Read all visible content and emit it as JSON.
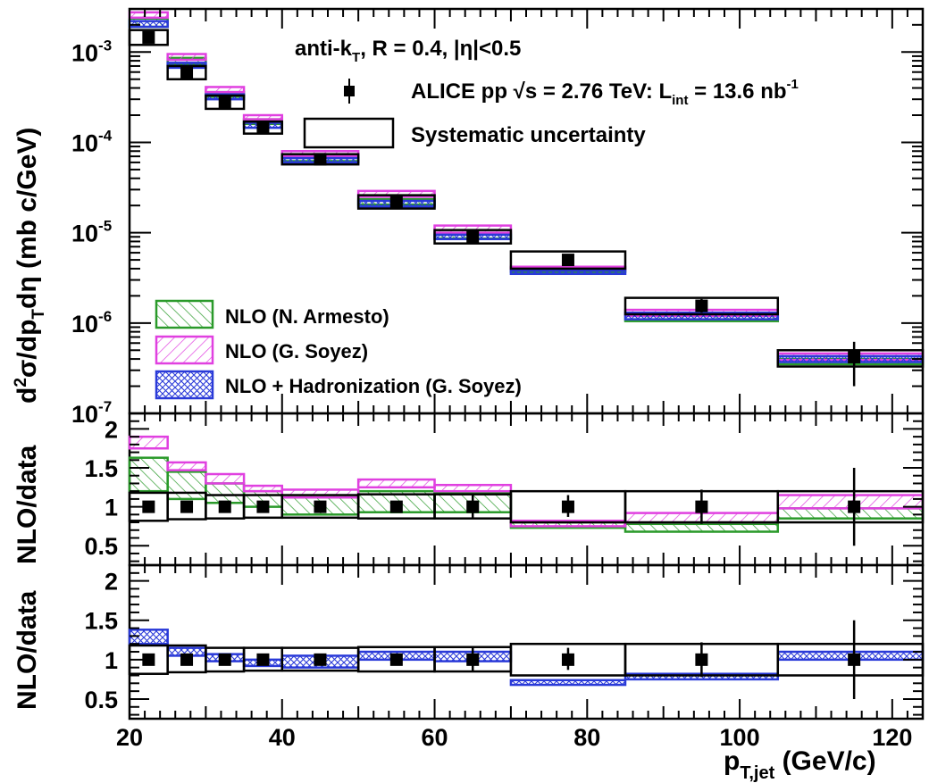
{
  "colors": {
    "data": "#000000",
    "nlo_armesto": "#2a9a2a",
    "nlo_soyez": "#e040e0",
    "nlo_hadronization": "#2a3ad8"
  },
  "chart_data": [
    {
      "type": "bar",
      "panel": "top",
      "ylabel_main": "d",
      "ylabel_parts": [
        "d",
        "2",
        "σ/dp",
        "T",
        "dη (mb c/GeV)"
      ],
      "xlim": [
        20,
        124
      ],
      "ylim": [
        1e-07,
        0.003
      ],
      "log_y": true,
      "ytick_labels": [
        {
          "mantissa": "10",
          "exponent": "-7",
          "value": 1e-07
        },
        {
          "mantissa": "10",
          "exponent": "-6",
          "value": 1e-06
        },
        {
          "mantissa": "10",
          "exponent": "-5",
          "value": 1e-05
        },
        {
          "mantissa": "10",
          "exponent": "-4",
          "value": 0.0001
        },
        {
          "mantissa": "10",
          "exponent": "-3",
          "value": 0.001
        }
      ],
      "bins": [
        [
          20,
          25
        ],
        [
          25,
          30
        ],
        [
          30,
          35
        ],
        [
          35,
          40
        ],
        [
          40,
          50
        ],
        [
          50,
          60
        ],
        [
          60,
          70
        ],
        [
          70,
          85
        ],
        [
          85,
          105
        ],
        [
          105,
          125
        ]
      ],
      "bin_centers": [
        22.5,
        27.5,
        32.5,
        37.5,
        45,
        55,
        65,
        77.5,
        95,
        115
      ],
      "data_values": [
        0.00145,
        0.00059,
        0.00028,
        0.000145,
        6.5e-05,
        2.2e-05,
        9e-06,
        5e-06,
        1.55e-06,
        4.2e-07
      ],
      "stat_err_low": [
        null,
        null,
        null,
        null,
        null,
        null,
        7.5e-06,
        4.3e-06,
        1.3e-06,
        2e-07
      ],
      "stat_err_high": [
        null,
        null,
        null,
        null,
        null,
        null,
        1.05e-05,
        5.8e-06,
        1.85e-06,
        6.2e-07
      ],
      "syst_low": [
        0.0012,
        0.0005,
        0.000235,
        0.000125,
        5.7e-05,
        1.85e-05,
        7.6e-06,
        4e-06,
        1.25e-06,
        3.3e-07
      ],
      "syst_high": [
        0.00175,
        0.0007,
        0.00033,
        0.00017,
        7.4e-05,
        2.6e-05,
        1.07e-05,
        6.2e-06,
        1.9e-06,
        5e-07
      ],
      "series": [
        {
          "name": "NLO (N. Armesto)",
          "color_key": "nlo_armesto",
          "low": [
            0.0019,
            0.00073,
            0.00032,
            0.00016,
            6.2e-05,
            2.05e-05,
            8.6e-06,
            3.7e-06,
            1.05e-06,
            3.5e-07
          ],
          "high": [
            0.00235,
            0.00086,
            0.00036,
            0.00018,
            6.8e-05,
            2.35e-05,
            1e-05,
            4.1e-06,
            1.2e-06,
            4e-07
          ]
        },
        {
          "name": "NLO (G. Soyez)",
          "color_key": "nlo_soyez",
          "low": [
            0.0024,
            0.00082,
            0.00036,
            0.00018,
            7e-05,
            2.5e-05,
            1e-05,
            3.9e-06,
            1.2e-06,
            3.9e-07
          ],
          "high": [
            0.00275,
            0.00095,
            0.00041,
            0.0002,
            8e-05,
            2.9e-05,
            1.2e-05,
            4.2e-06,
            1.4e-06,
            4.6e-07
          ]
        },
        {
          "name": "NLO + Hadronization (G. Soyez)",
          "color_key": "nlo_hadronization",
          "low": [
            0.0019,
            0.00067,
            0.0003,
            0.000145,
            6e-05,
            1.95e-05,
            8.5e-06,
            3.5e-06,
            1.1e-06,
            3.7e-07
          ],
          "high": [
            0.0022,
            0.00076,
            0.00034,
            0.000165,
            6.7e-05,
            2.25e-05,
            9.5e-06,
            3.8e-06,
            1.3e-06,
            4.3e-07
          ]
        }
      ],
      "annotations": {
        "algo_prefix": "anti-k",
        "algo_sub": "T",
        "algo_suffix": ", R = 0.4, |η|<0.5",
        "experiment_prefix": "ALICE pp  √s = 2.76 TeV: L",
        "experiment_sub": "int",
        "experiment_mid": " = 13.6 nb",
        "experiment_sup": "-1",
        "syst_label": "Systematic uncertainty"
      },
      "legend": "bottom-left"
    },
    {
      "type": "bar",
      "panel": "middle",
      "ylabel": "NLO/data",
      "ylim": [
        0.25,
        2.2
      ],
      "yticks": [
        "0.5",
        "1",
        "1.5",
        "2"
      ],
      "ytick_values": [
        0.5,
        1,
        1.5,
        2
      ],
      "data_ratio": [
        1,
        1,
        1,
        1,
        1,
        1,
        1,
        1,
        1,
        1
      ],
      "ratio_stat_low": [
        null,
        null,
        null,
        null,
        null,
        null,
        0.85,
        0.87,
        0.78,
        0.5
      ],
      "ratio_stat_high": [
        null,
        null,
        null,
        null,
        null,
        null,
        1.15,
        1.15,
        1.22,
        1.5
      ],
      "ratio_syst_low": [
        0.82,
        0.84,
        0.85,
        0.86,
        0.86,
        0.85,
        0.85,
        0.8,
        0.8,
        0.8
      ],
      "ratio_syst_high": [
        1.18,
        1.18,
        1.15,
        1.15,
        1.15,
        1.16,
        1.16,
        1.2,
        1.2,
        1.2
      ],
      "series": [
        {
          "name": "NLO (N. Armesto)",
          "color_key": "nlo_armesto",
          "low": [
            1.2,
            1.1,
            1.05,
            1.0,
            0.9,
            0.93,
            0.93,
            0.73,
            0.68,
            0.85
          ],
          "high": [
            1.63,
            1.45,
            1.3,
            1.2,
            1.12,
            1.2,
            1.18,
            0.8,
            0.78,
            0.98
          ]
        },
        {
          "name": "NLO (G. Soyez)",
          "color_key": "nlo_soyez",
          "low": [
            1.75,
            1.47,
            1.3,
            1.2,
            1.12,
            1.25,
            1.2,
            0.75,
            0.8,
            0.98
          ],
          "high": [
            1.9,
            1.57,
            1.42,
            1.27,
            1.22,
            1.35,
            1.28,
            0.82,
            0.92,
            1.15
          ]
        }
      ]
    },
    {
      "type": "bar",
      "panel": "bottom",
      "ylabel": "NLO/data",
      "xlabel_main": "p",
      "xlabel_sub": "T,jet",
      "xlabel_unit": " (GeV/c)",
      "ylim": [
        0.25,
        2.2
      ],
      "yticks": [
        "0.5",
        "1",
        "1.5",
        "2"
      ],
      "ytick_values": [
        0.5,
        1,
        1.5,
        2
      ],
      "xticks": [
        "20",
        "40",
        "60",
        "80",
        "100",
        "120"
      ],
      "xtick_values": [
        20,
        40,
        60,
        80,
        100,
        120
      ],
      "data_ratio": [
        1,
        1,
        1,
        1,
        1,
        1,
        1,
        1,
        1,
        1
      ],
      "ratio_stat_low": [
        null,
        null,
        null,
        null,
        null,
        null,
        0.85,
        0.87,
        0.78,
        0.5
      ],
      "ratio_stat_high": [
        null,
        null,
        null,
        null,
        null,
        null,
        1.15,
        1.15,
        1.22,
        1.5
      ],
      "ratio_syst_low": [
        0.82,
        0.84,
        0.85,
        0.86,
        0.86,
        0.85,
        0.85,
        0.8,
        0.8,
        0.8
      ],
      "ratio_syst_high": [
        1.18,
        1.18,
        1.15,
        1.15,
        1.15,
        1.16,
        1.16,
        1.2,
        1.2,
        1.2
      ],
      "series": [
        {
          "name": "NLO + Hadronization (G. Soyez)",
          "color_key": "nlo_hadronization",
          "low": [
            1.2,
            1.05,
            0.98,
            0.92,
            0.9,
            1.0,
            0.98,
            0.68,
            0.75,
            1.0
          ],
          "high": [
            1.38,
            1.15,
            1.07,
            1.0,
            1.05,
            1.1,
            1.1,
            0.74,
            0.82,
            1.1
          ]
        }
      ]
    }
  ]
}
